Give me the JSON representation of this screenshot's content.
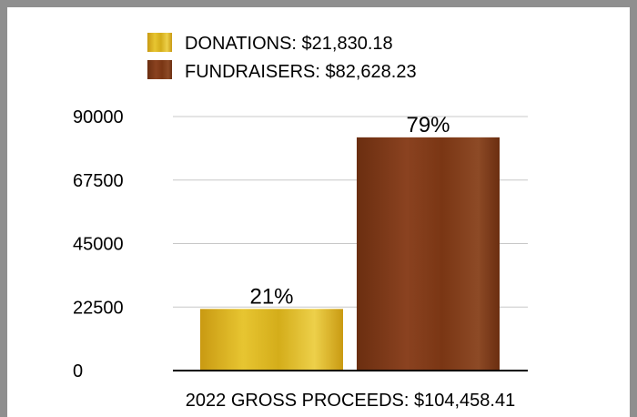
{
  "colors": {
    "donations": "#d9b414",
    "fundraisers": "#7a3614",
    "gridline": "#c8c8c8",
    "axis": "#000000",
    "frame": "#8f8f8f"
  },
  "legend": {
    "items": [
      {
        "label": "DONATIONS:  $21,830.18",
        "color": "#d9b414"
      },
      {
        "label": "FUNDRAISERS:  $82,628.23",
        "color": "#7a3614"
      }
    ]
  },
  "chart_data": {
    "type": "bar",
    "categories": [
      "DONATIONS",
      "FUNDRAISERS"
    ],
    "values": [
      21830.18,
      82628.23
    ],
    "data_labels": [
      "21%",
      "79%"
    ],
    "title": "",
    "xlabel": "2022 GROSS PROCEEDS:  $104,458.41",
    "ylabel": "",
    "ylim": [
      0,
      90000
    ],
    "yticks": [
      "0",
      "22500",
      "45000",
      "67500",
      "90000"
    ],
    "ytick_values": [
      0,
      22500,
      45000,
      67500,
      90000
    ],
    "grid": true,
    "legend_position": "top"
  }
}
